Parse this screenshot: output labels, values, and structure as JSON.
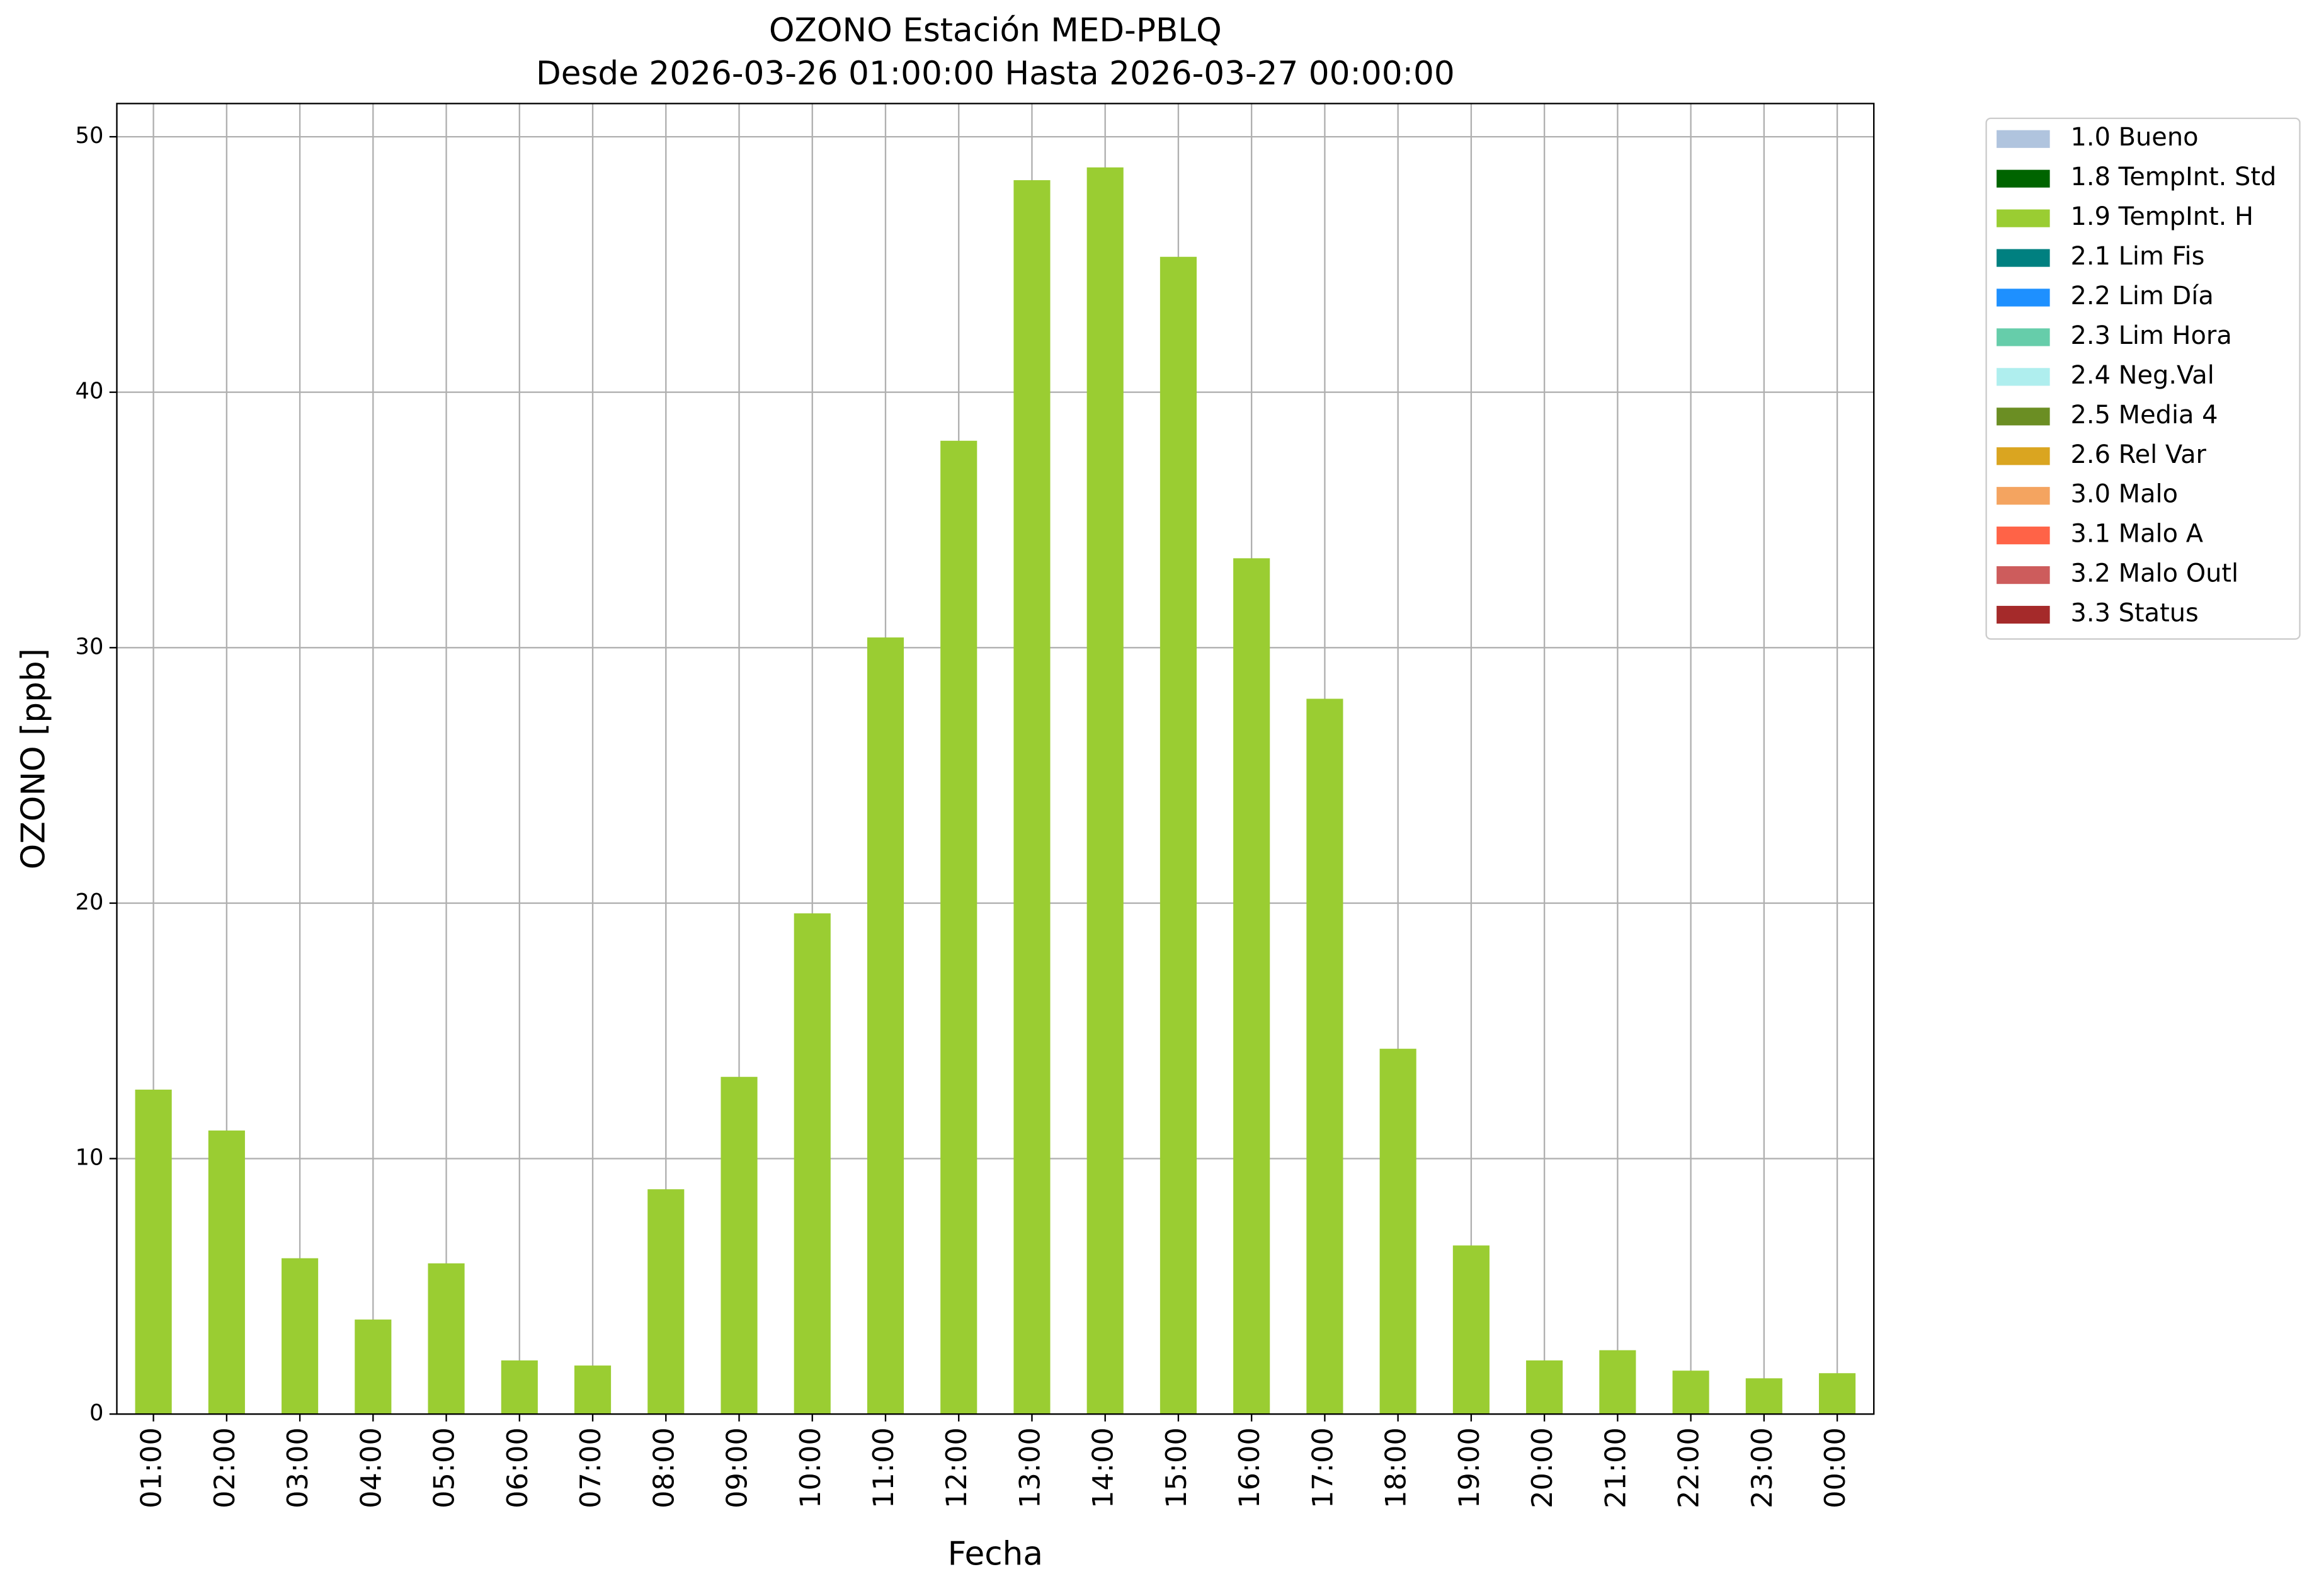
{
  "chart_data": {
    "type": "stacked_bar",
    "title": "OZONO Estación MED-PBLQ",
    "subtitle": "Desde 2026-03-26 01:00:00 Hasta 2026-03-27 00:00:00",
    "x_label": "Fecha",
    "y_label": "OZONO [ppb]",
    "categories": [
      "01:00",
      "02:00",
      "03:00",
      "04:00",
      "05:00",
      "06:00",
      "07:00",
      "08:00",
      "09:00",
      "10:00",
      "11:00",
      "12:00",
      "13:00",
      "14:00",
      "15:00",
      "16:00",
      "17:00",
      "18:00",
      "19:00",
      "20:00",
      "21:00",
      "22:00",
      "23:00",
      "00:00"
    ],
    "series": [
      {
        "name": "1.0 Bueno",
        "color": "#b0c4de",
        "values": [
          null,
          null,
          null,
          null,
          null,
          null,
          null,
          null,
          null,
          null,
          null,
          null,
          null,
          null,
          null,
          null,
          null,
          null,
          null,
          null,
          null,
          null,
          null,
          null
        ]
      },
      {
        "name": "1.8 TempInt. Std",
        "color": "#006400",
        "values": [
          null,
          null,
          null,
          null,
          null,
          null,
          null,
          null,
          null,
          null,
          null,
          null,
          null,
          null,
          null,
          null,
          null,
          null,
          null,
          null,
          null,
          null,
          null,
          null
        ]
      },
      {
        "name": "1.9 TempInt. H",
        "color": "#9acd32",
        "values": [
          12.7,
          11.1,
          6.1,
          3.7,
          5.9,
          2.1,
          1.9,
          8.8,
          13.2,
          19.6,
          30.4,
          38.1,
          48.3,
          48.8,
          45.3,
          33.5,
          28.0,
          14.3,
          6.6,
          2.1,
          2.5,
          1.7,
          1.4,
          1.6
        ]
      },
      {
        "name": "2.1 Lim Fis",
        "color": "#008080",
        "values": [
          null,
          null,
          null,
          null,
          null,
          null,
          null,
          null,
          null,
          null,
          null,
          null,
          null,
          null,
          null,
          null,
          null,
          null,
          null,
          null,
          null,
          null,
          null,
          null
        ]
      },
      {
        "name": "2.2 Lim Día",
        "color": "#1e90ff",
        "values": [
          null,
          null,
          null,
          null,
          null,
          null,
          null,
          null,
          null,
          null,
          null,
          null,
          null,
          null,
          null,
          null,
          null,
          null,
          null,
          null,
          null,
          null,
          null,
          null
        ]
      },
      {
        "name": "2.3 Lim Hora",
        "color": "#66cdaa",
        "values": [
          null,
          null,
          null,
          null,
          null,
          null,
          null,
          null,
          null,
          null,
          null,
          null,
          null,
          null,
          null,
          null,
          null,
          null,
          null,
          null,
          null,
          null,
          null,
          null
        ]
      },
      {
        "name": "2.4 Neg.Val",
        "color": "#afeeee",
        "values": [
          null,
          null,
          null,
          null,
          null,
          null,
          null,
          null,
          null,
          null,
          null,
          null,
          null,
          null,
          null,
          null,
          null,
          null,
          null,
          null,
          null,
          null,
          null,
          null
        ]
      },
      {
        "name": "2.5 Media 4",
        "color": "#6b8e23",
        "values": [
          null,
          null,
          null,
          null,
          null,
          null,
          null,
          null,
          null,
          null,
          null,
          null,
          null,
          null,
          null,
          null,
          null,
          null,
          null,
          null,
          null,
          null,
          null,
          null
        ]
      },
      {
        "name": "2.6 Rel Var",
        "color": "#daa520",
        "values": [
          null,
          null,
          null,
          null,
          null,
          null,
          null,
          null,
          null,
          null,
          null,
          null,
          null,
          null,
          null,
          null,
          null,
          null,
          null,
          null,
          null,
          null,
          null,
          null
        ]
      },
      {
        "name": "3.0 Malo",
        "color": "#f4a460",
        "values": [
          null,
          null,
          null,
          null,
          null,
          null,
          null,
          null,
          null,
          null,
          null,
          null,
          null,
          null,
          null,
          null,
          null,
          null,
          null,
          null,
          null,
          null,
          null,
          null
        ]
      },
      {
        "name": "3.1 Malo A",
        "color": "#ff6347",
        "values": [
          null,
          null,
          null,
          null,
          null,
          null,
          null,
          null,
          null,
          null,
          null,
          null,
          null,
          null,
          null,
          null,
          null,
          null,
          null,
          null,
          null,
          null,
          null,
          null
        ]
      },
      {
        "name": "3.2 Malo Outl",
        "color": "#cd5c5c",
        "values": [
          null,
          null,
          null,
          null,
          null,
          null,
          null,
          null,
          null,
          null,
          null,
          null,
          null,
          null,
          null,
          null,
          null,
          null,
          null,
          null,
          null,
          null,
          null,
          null
        ]
      },
      {
        "name": "3.3 Status",
        "color": "#a52a2a",
        "values": [
          null,
          null,
          null,
          null,
          null,
          null,
          null,
          null,
          null,
          null,
          null,
          null,
          null,
          null,
          null,
          null,
          null,
          null,
          null,
          null,
          null,
          null,
          null,
          null
        ]
      }
    ],
    "ylim": [
      0,
      51.3
    ],
    "yticks": [
      0,
      10,
      20,
      30,
      40,
      50
    ],
    "grid": true
  }
}
